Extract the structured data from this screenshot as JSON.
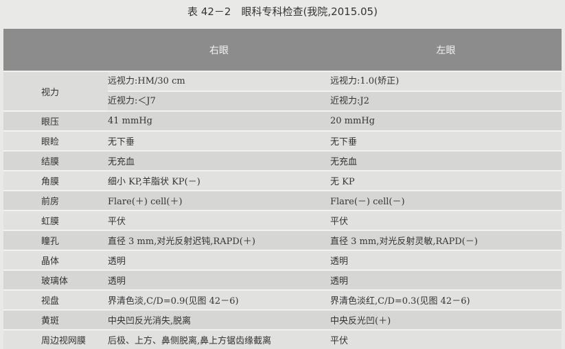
{
  "title": "表 42－2　眼科专科检查(我院,2015.05)",
  "headers": [
    "",
    "右眼",
    "左眼"
  ],
  "acuity": {
    "label": "视力",
    "right": [
      "远视力:HM/30 cm",
      "近视力:＜J7"
    ],
    "left": [
      "远视力:1.0(矫正)",
      "近视力:J2"
    ]
  },
  "rows": [
    {
      "label": "眼压",
      "right": "41 mmHg",
      "left": "20 mmHg"
    },
    {
      "label": "眼睑",
      "right": "无下垂",
      "left": "无下垂"
    },
    {
      "label": "结膜",
      "right": "无充血",
      "left": "无充血"
    },
    {
      "label": "角膜",
      "right": "细小 KP,羊脂状 KP(－)",
      "left": "无 KP"
    },
    {
      "label": "前房",
      "right": "Flare(＋) cell(＋)",
      "left": "Flare(－) cell(－)"
    },
    {
      "label": "虹膜",
      "right": "平伏",
      "left": "平伏"
    },
    {
      "label": "瞳孔",
      "right": "直径 3 mm,对光反射迟钝,RAPD(＋)",
      "left": "直径 3 mm,对光反射灵敏,RAPD(－)"
    },
    {
      "label": "晶体",
      "right": "透明",
      "left": "透明"
    },
    {
      "label": "玻璃体",
      "right": "透明",
      "left": "透明"
    },
    {
      "label": "视盘",
      "right": "界清色淡,C/D=0.9(见图 42－6)",
      "left": "界清色淡红,C/D=0.3(见图 42－6)"
    },
    {
      "label": "黄斑",
      "right": "中央凹反光消失,脱离",
      "left": "中央反光凹(＋)"
    },
    {
      "label": "周边视网膜",
      "right": "后极、上方、鼻侧脱离,鼻上方锯齿缘截离",
      "left": "平伏"
    }
  ]
}
